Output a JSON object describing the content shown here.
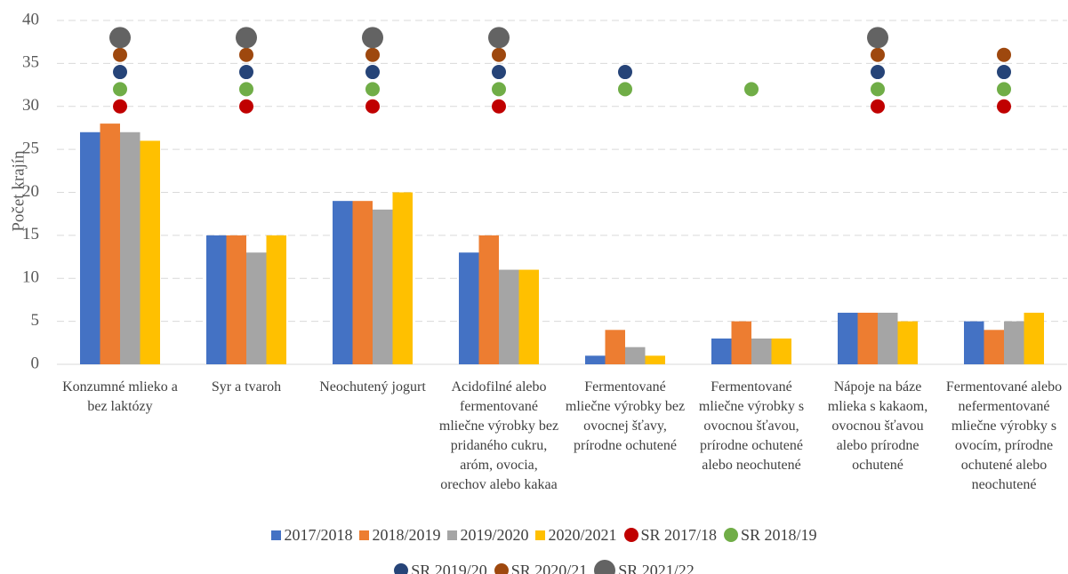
{
  "chart_data": {
    "type": "bar",
    "y_label": "Počet krajín",
    "categories": [
      "Konzumné mlieko a bez laktózy",
      "Syr a tvaroh",
      "Neochutený jogurt",
      "Acidofilné alebo fermentované mliečne výrobky bez pridaného cukru, aróm, ovocia, orechov alebo kakaa",
      "Fermentované mliečne výrobky bez ovocnej šťavy, prírodne ochutené",
      "Fermentované mliečne výrobky s ovocnou šťavou, prírodne ochutené alebo neochutené",
      "Nápoje na báze mlieka s kakaom, ovocnou šťavou alebo prírodne ochutené",
      "Fermentované alebo nefermentované mliečne výrobky s ovocím, prírodne ochutené alebo neochutené"
    ],
    "series": [
      {
        "name": "2017/2018",
        "type": "bar",
        "color": "#4472c4",
        "values": [
          27,
          15,
          19,
          13,
          1,
          3,
          6,
          5
        ]
      },
      {
        "name": "2018/2019",
        "type": "bar",
        "color": "#ed7d31",
        "values": [
          28,
          15,
          19,
          15,
          4,
          5,
          6,
          4
        ]
      },
      {
        "name": "2019/2020",
        "type": "bar",
        "color": "#a5a5a5",
        "values": [
          27,
          13,
          18,
          11,
          2,
          3,
          6,
          5
        ]
      },
      {
        "name": "2020/2021",
        "type": "bar",
        "color": "#ffc000",
        "values": [
          26,
          15,
          20,
          11,
          1,
          3,
          5,
          6
        ]
      },
      {
        "name": "SR 2017/18",
        "type": "scatter",
        "color": "#c00000",
        "marker_size": 8,
        "values": [
          30,
          30,
          30,
          30,
          null,
          null,
          30,
          30
        ]
      },
      {
        "name": "SR 2018/19",
        "type": "scatter",
        "color": "#70ad47",
        "marker_size": 8,
        "values": [
          32,
          32,
          32,
          32,
          32,
          32,
          32,
          32
        ]
      },
      {
        "name": "SR 2019/20",
        "type": "scatter",
        "color": "#264478",
        "marker_size": 8,
        "values": [
          34,
          34,
          34,
          34,
          34,
          null,
          34,
          34
        ]
      },
      {
        "name": "SR 2020/21",
        "type": "scatter",
        "color": "#9e480e",
        "marker_size": 8,
        "values": [
          36,
          36,
          36,
          36,
          null,
          null,
          36,
          36
        ]
      },
      {
        "name": "SR 2021/22",
        "type": "scatter",
        "color": "#636363",
        "marker_size": 12,
        "values": [
          38,
          38,
          38,
          38,
          null,
          null,
          38,
          null
        ]
      }
    ],
    "ylim": [
      0,
      40
    ],
    "yticks": [
      0,
      5,
      10,
      15,
      20,
      25,
      30,
      35,
      40
    ],
    "grid": true
  }
}
